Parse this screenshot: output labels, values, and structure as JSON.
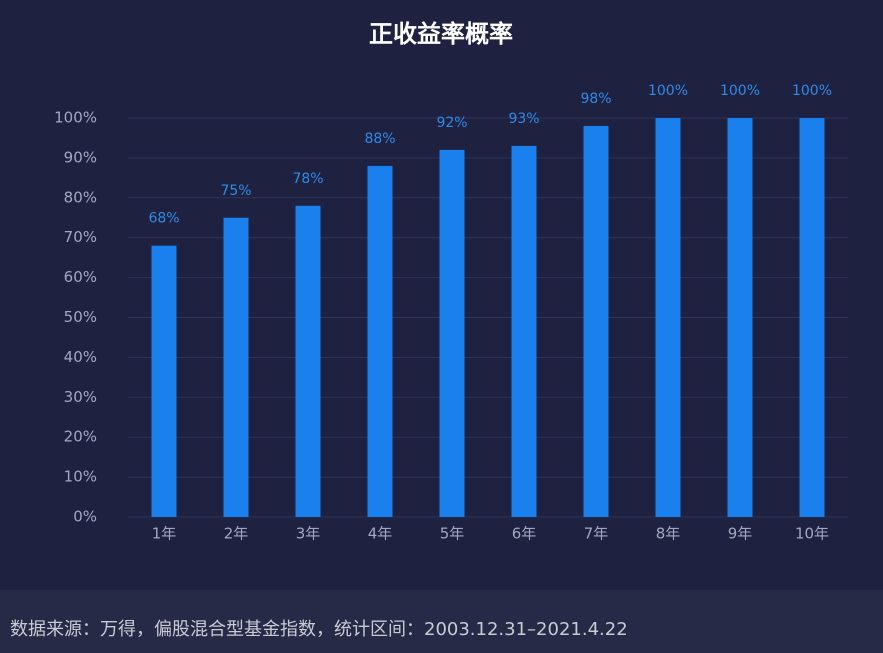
{
  "chart_data": {
    "type": "bar",
    "title": "正收益率概率",
    "categories": [
      "1年",
      "2年",
      "3年",
      "4年",
      "5年",
      "6年",
      "7年",
      "8年",
      "9年",
      "10年"
    ],
    "values": [
      68,
      75,
      78,
      88,
      92,
      93,
      98,
      100,
      100,
      100
    ],
    "value_labels": [
      "68%",
      "75%",
      "78%",
      "88%",
      "92%",
      "93%",
      "98%",
      "100%",
      "100%",
      "100%"
    ],
    "color": "#1a80ee",
    "ylim": [
      0,
      100
    ],
    "yticks": [
      {
        "value": 0,
        "label": "0%"
      },
      {
        "value": 10,
        "label": "10%"
      },
      {
        "value": 20,
        "label": "20%"
      },
      {
        "value": 30,
        "label": "30%"
      },
      {
        "value": 40,
        "label": "40%"
      },
      {
        "value": 50,
        "label": "50%"
      },
      {
        "value": 60,
        "label": "60%"
      },
      {
        "value": 70,
        "label": "70%"
      },
      {
        "value": 80,
        "label": "80%"
      },
      {
        "value": 90,
        "label": "90%"
      },
      {
        "value": 100,
        "label": "100%"
      }
    ],
    "grid": true,
    "source": "数据来源：万得，偏股混合型基金指数，统计区间：2003.12.31–2021.4.22"
  }
}
